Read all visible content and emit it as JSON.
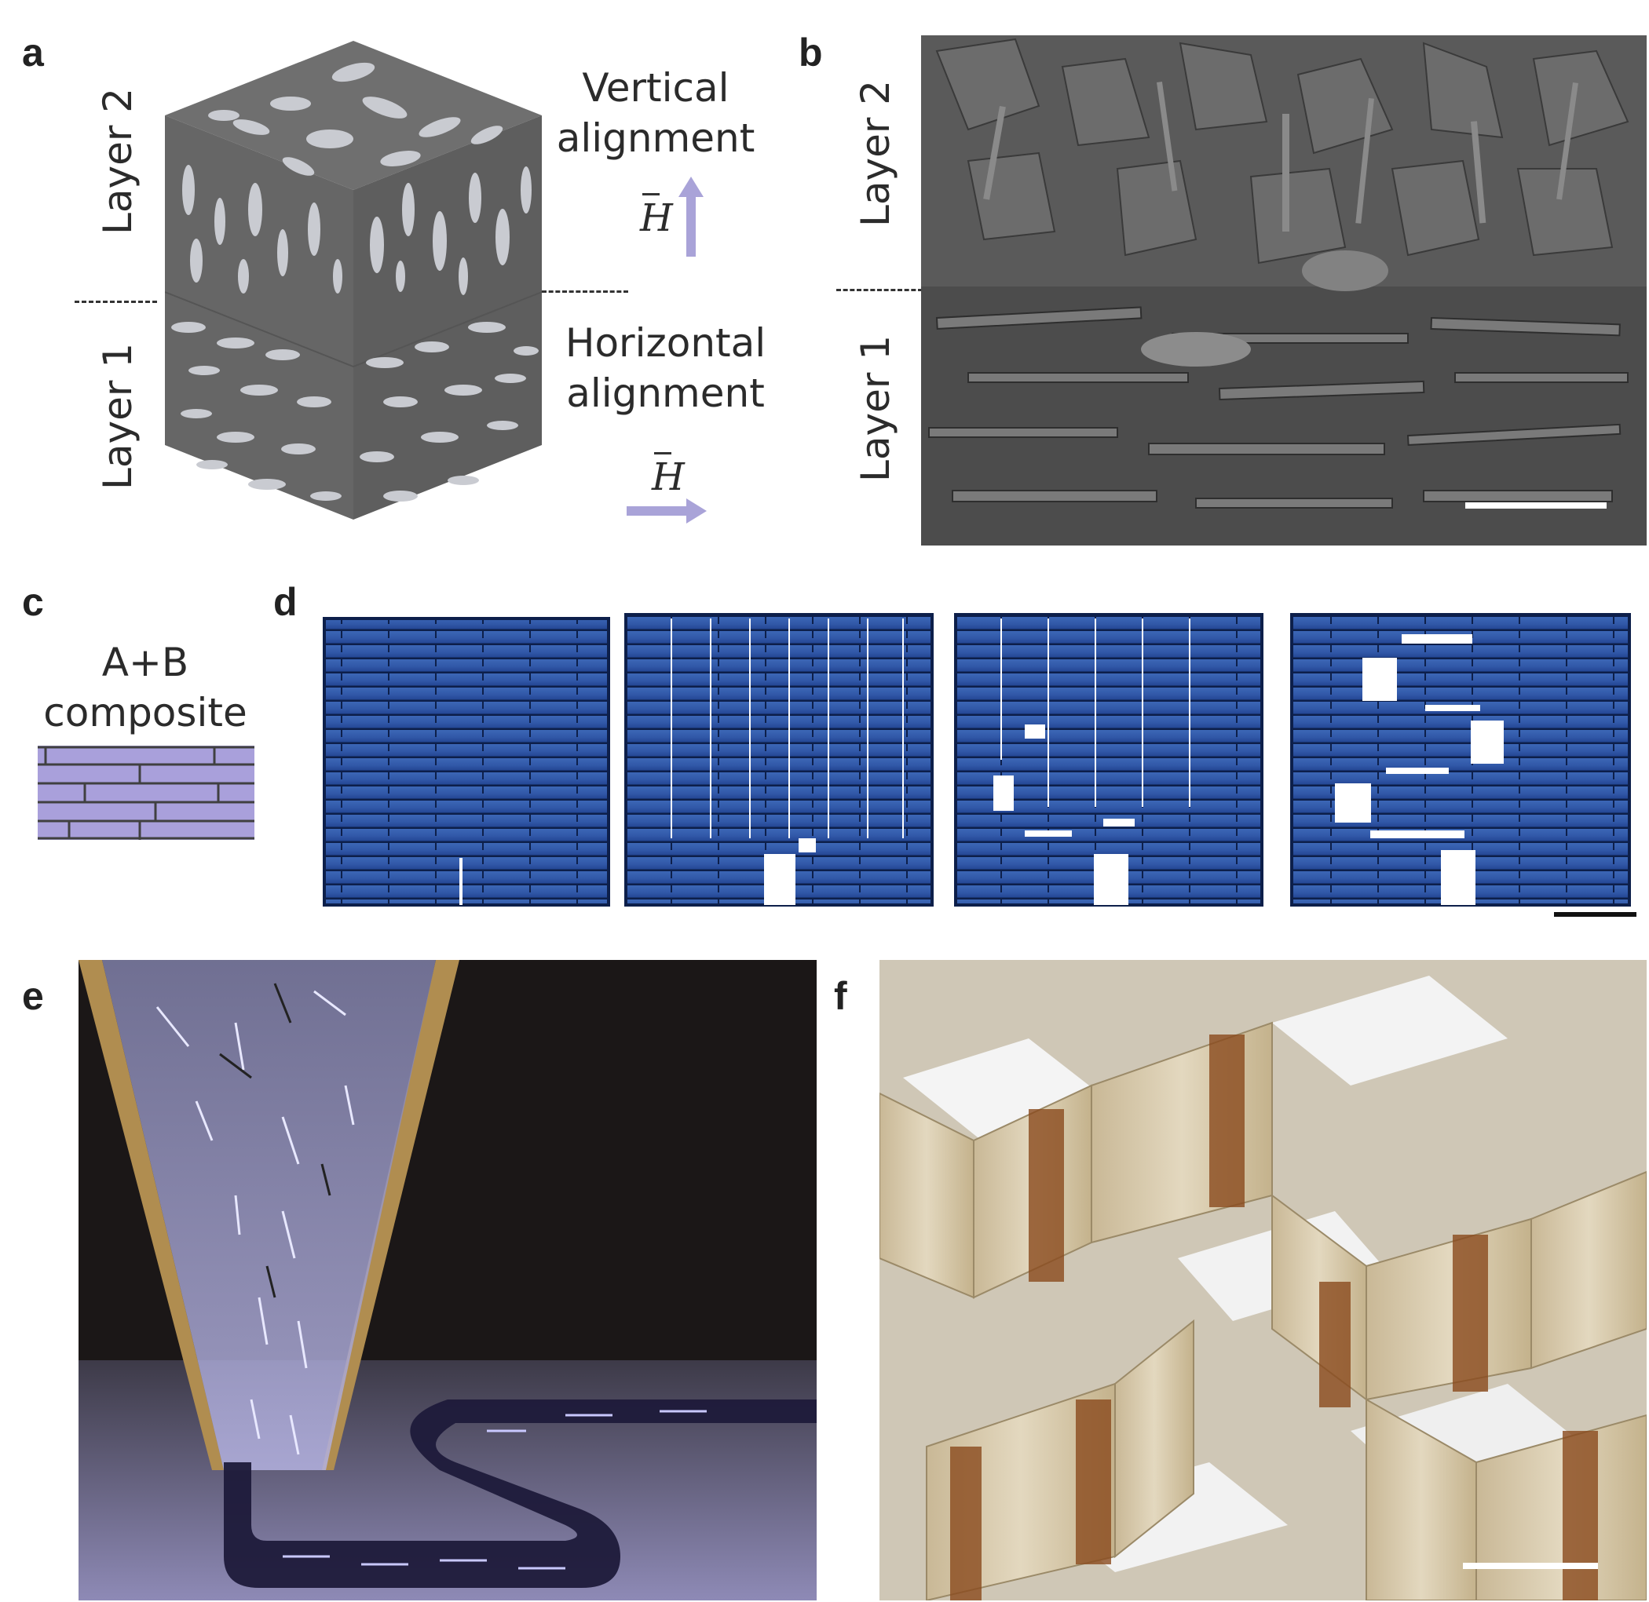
{
  "panels": {
    "a": {
      "label": "a",
      "layer2": "Layer 2",
      "layer1": "Layer 1",
      "vertical": [
        "Vertical",
        "alignment"
      ],
      "horizontal": [
        "Horizontal",
        "alignment"
      ],
      "field_symbol": "H"
    },
    "b": {
      "label": "b",
      "layer2": "Layer 2",
      "layer1": "Layer 1"
    },
    "c": {
      "label": "c",
      "title": [
        "A+B",
        "composite"
      ]
    },
    "d": {
      "label": "d"
    },
    "e": {
      "label": "e"
    },
    "f": {
      "label": "f"
    }
  },
  "colors": {
    "arrow": "#a9a3d8",
    "cube": "#6a6a6a",
    "platelet": "#c8cbd2",
    "composite_fill": "#a9a0db",
    "composite_line": "#404040",
    "tile_blue": "#2f56a8",
    "sem_gray": "#4f4f4f"
  }
}
